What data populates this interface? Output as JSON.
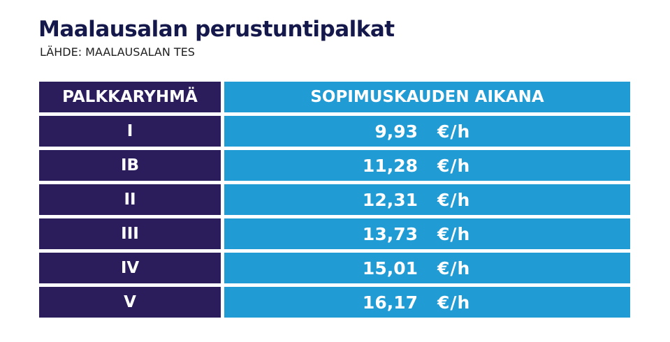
{
  "title": "Maalausalan perustuntipalkat",
  "source": "LÄHDE: MAALAUSALAN TES",
  "colors": {
    "title": "#14184a",
    "source": "#1e1e1e",
    "left_cell": "#2b1d5c",
    "right_cell": "#219bd4",
    "text": "#ffffff"
  },
  "chart_data": {
    "type": "table",
    "title": "Maalausalan perustuntipalkat",
    "columns": [
      "PALKKARYHMÄ",
      "SOPIMUSKAUDEN AIKANA"
    ],
    "unit": "€/h",
    "rows": [
      {
        "group": "I",
        "value": "9,93",
        "unit": "€/h"
      },
      {
        "group": "IB",
        "value": "11,28",
        "unit": "€/h"
      },
      {
        "group": "II",
        "value": "12,31",
        "unit": "€/h"
      },
      {
        "group": "III",
        "value": "13,73",
        "unit": "€/h"
      },
      {
        "group": "IV",
        "value": "15,01",
        "unit": "€/h"
      },
      {
        "group": "V",
        "value": "16,17",
        "unit": "€/h"
      }
    ]
  }
}
